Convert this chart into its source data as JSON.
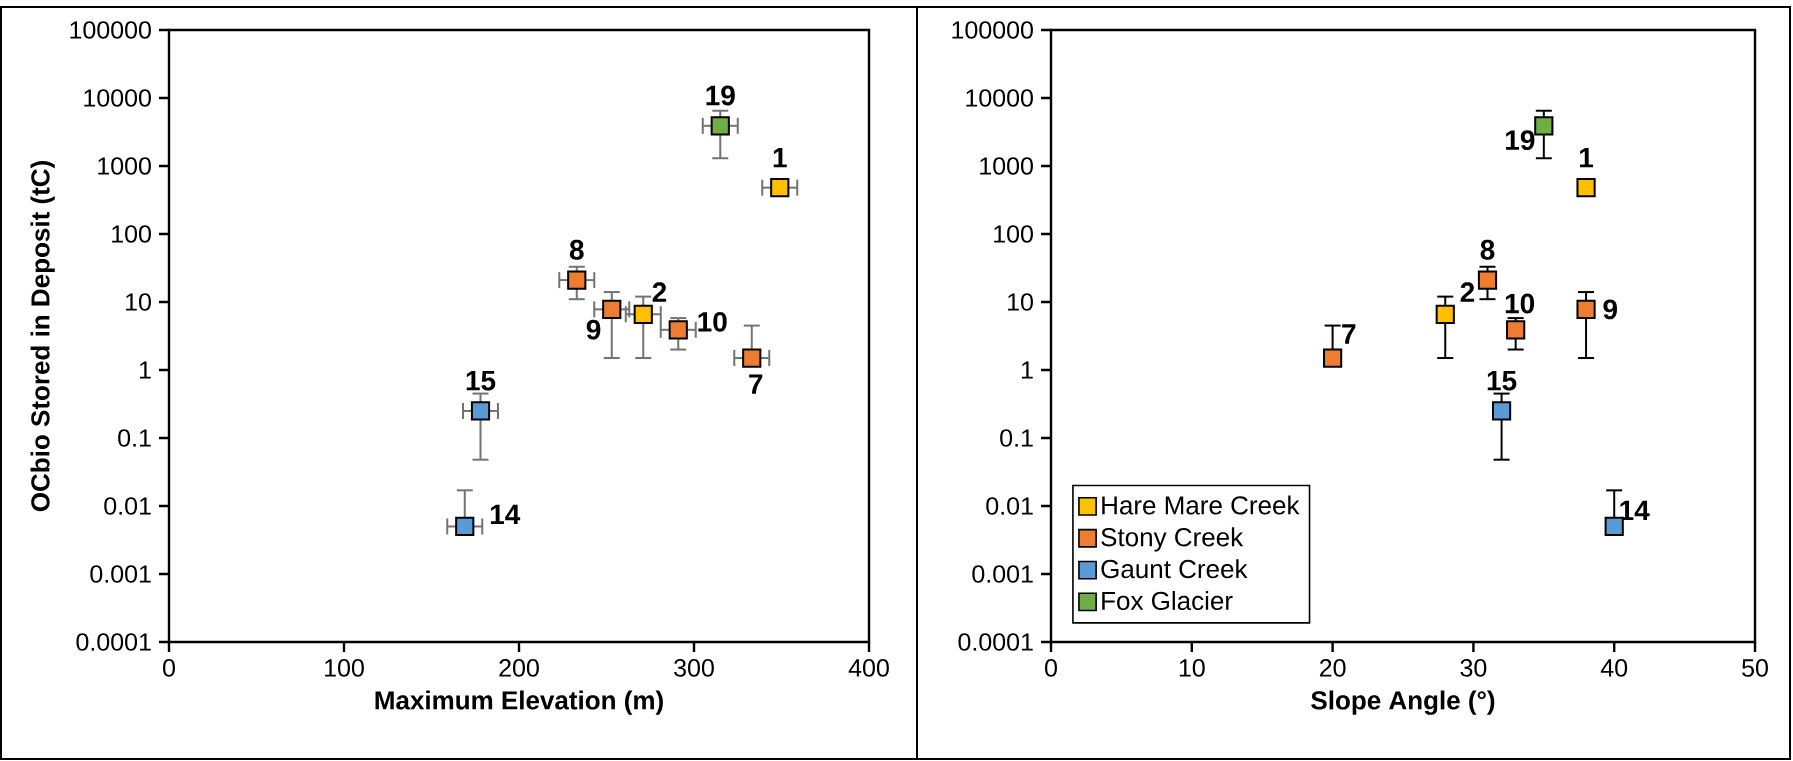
{
  "chart_data": [
    {
      "type": "scatter",
      "xlabel": "Maximum Elevation (m)",
      "ylabel": "OCbio Stored in Deposit (tC)",
      "log": "y",
      "marker": "square",
      "grid": false,
      "legend": false,
      "xlim": [
        0,
        400
      ],
      "xticks": [
        0,
        100,
        200,
        300,
        400
      ],
      "ylim": [
        0.0001,
        100000
      ],
      "yticks": [
        0.0001,
        0.001,
        0.01,
        0.1,
        1,
        10,
        100,
        1000,
        10000,
        100000
      ],
      "series": [
        {
          "color": "#ffc000",
          "x": [
            349,
            271
          ],
          "values": [
            480,
            6.6
          ],
          "errors": [
            null,
            [
              1.5,
              12
            ]
          ],
          "xerrors": [
            10,
            10
          ]
        },
        {
          "color": "#ed7d31",
          "x": [
            233,
            253,
            291,
            333
          ],
          "values": [
            21,
            7.8,
            3.9,
            1.5
          ],
          "errors": [
            [
              11,
              33
            ],
            [
              1.5,
              14
            ],
            [
              2.0,
              5.8
            ],
            [
              1.5,
              4.5
            ]
          ],
          "xerrors": [
            10,
            10,
            10,
            10
          ]
        },
        {
          "color": "#5b9bd5",
          "x": [
            178,
            169
          ],
          "values": [
            0.25,
            0.005
          ],
          "errors": [
            [
              0.048,
              0.45
            ],
            [
              0.005,
              0.017
            ]
          ],
          "xerrors": [
            10,
            10
          ]
        },
        {
          "color": "#70ad47",
          "x": [
            315
          ],
          "values": [
            3900
          ],
          "errors": [
            [
              1300,
              6500
            ]
          ],
          "xerrors": [
            10
          ]
        }
      ],
      "annotations": [
        {
          "text": "19",
          "x": 315,
          "y": 3900
        },
        {
          "text": "1",
          "x": 349,
          "y": 480
        },
        {
          "text": "8",
          "x": 233,
          "y": 21
        },
        {
          "text": "9",
          "x": 253,
          "y": 7.8
        },
        {
          "text": "2",
          "x": 271,
          "y": 6.6
        },
        {
          "text": "10",
          "x": 291,
          "y": 3.9
        },
        {
          "text": "7",
          "x": 333,
          "y": 1.5
        },
        {
          "text": "15",
          "x": 178,
          "y": 0.25
        },
        {
          "text": "14",
          "x": 169,
          "y": 0.005
        }
      ]
    },
    {
      "type": "scatter",
      "xlabel": "Slope Angle (°)",
      "log": "y",
      "marker": "square",
      "grid": false,
      "legend": "bottom left",
      "xlim": [
        0,
        50
      ],
      "xticks": [
        0,
        10,
        20,
        30,
        40,
        50
      ],
      "ylim": [
        0.0001,
        100000
      ],
      "yticks": [
        0.0001,
        0.001,
        0.01,
        0.1,
        1,
        10,
        100,
        1000,
        10000,
        100000
      ],
      "series": [
        {
          "name": "Hare Mare Creek",
          "color": "#ffc000",
          "x": [
            38,
            28
          ],
          "values": [
            480,
            6.6
          ],
          "errors": [
            null,
            [
              1.5,
              12
            ]
          ]
        },
        {
          "name": "Stony Creek",
          "color": "#ed7d31",
          "x": [
            31,
            38,
            33,
            20
          ],
          "values": [
            21,
            7.8,
            3.9,
            1.5
          ],
          "errors": [
            [
              11,
              33
            ],
            [
              1.5,
              14
            ],
            [
              2.0,
              5.8
            ],
            [
              1.5,
              4.5
            ]
          ]
        },
        {
          "name": "Gaunt Creek",
          "color": "#5b9bd5",
          "x": [
            32,
            40
          ],
          "values": [
            0.25,
            0.005
          ],
          "errors": [
            [
              0.048,
              0.45
            ],
            [
              0.005,
              0.017
            ]
          ]
        },
        {
          "name": "Fox Glacier",
          "color": "#70ad47",
          "x": [
            35
          ],
          "values": [
            3900
          ],
          "errors": [
            [
              1300,
              6500
            ]
          ]
        }
      ],
      "annotations": [
        {
          "text": "19",
          "x": 35,
          "y": 3900
        },
        {
          "text": "1",
          "x": 38,
          "y": 480
        },
        {
          "text": "8",
          "x": 31,
          "y": 21
        },
        {
          "text": "9",
          "x": 38,
          "y": 7.8
        },
        {
          "text": "2",
          "x": 28,
          "y": 6.6
        },
        {
          "text": "10",
          "x": 33,
          "y": 3.9
        },
        {
          "text": "7",
          "x": 20,
          "y": 1.5
        },
        {
          "text": "15",
          "x": 32,
          "y": 0.25
        },
        {
          "text": "14",
          "x": 40,
          "y": 0.005
        }
      ]
    }
  ]
}
